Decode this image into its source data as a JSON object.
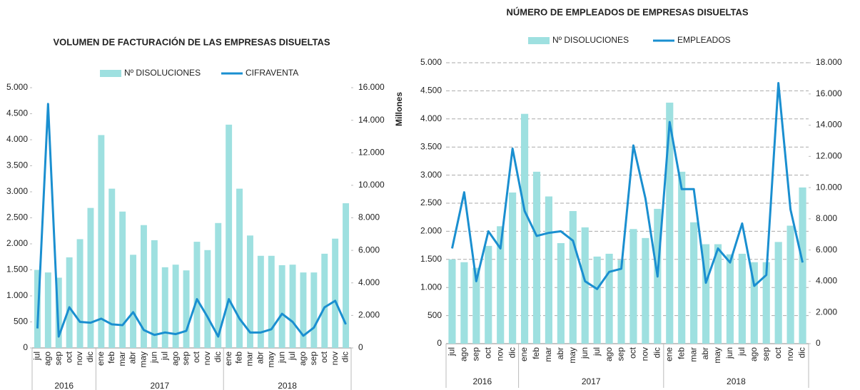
{
  "chart_data": [
    {
      "type": "bar_line",
      "title": "VOLUMEN DE FACTURACIÓN DE LAS EMPRESAS DISUELTAS",
      "categories": [
        "jul",
        "ago",
        "sep",
        "oct",
        "nov",
        "dic",
        "ene",
        "feb",
        "mar",
        "abr",
        "may",
        "jun",
        "jul",
        "ago",
        "sep",
        "oct",
        "nov",
        "dic",
        "ene",
        "feb",
        "mar",
        "abr",
        "may",
        "jun",
        "jul",
        "ago",
        "sep",
        "oct",
        "nov",
        "dic"
      ],
      "year_groups": [
        {
          "label": "2016",
          "count": 6
        },
        {
          "label": "2017",
          "count": 12
        },
        {
          "label": "2018",
          "count": 12
        }
      ],
      "series": [
        {
          "name": "Nº DISOLUCIONES",
          "color": "#9ee0e0",
          "values": [
            1500,
            1450,
            1350,
            1740,
            2090,
            2690,
            4090,
            3060,
            2620,
            1790,
            2360,
            2070,
            1550,
            1600,
            1490,
            2040,
            1880,
            2400,
            4290,
            3060,
            2160,
            1770,
            1770,
            1590,
            1600,
            1450,
            1450,
            1810,
            2100,
            2780
          ]
        },
        {
          "name": "CIFRAVENTA",
          "color": "#1a8fd0",
          "axis": "y2",
          "values": [
            1200,
            15000,
            700,
            2500,
            1600,
            1550,
            1800,
            1450,
            1400,
            2200,
            1100,
            800,
            950,
            850,
            1050,
            3000,
            1900,
            700,
            3000,
            1800,
            950,
            950,
            1150,
            2100,
            1600,
            750,
            1250,
            2500,
            2900,
            1450
          ]
        }
      ],
      "ylim": [
        0,
        5000
      ],
      "yticks": [
        0,
        500,
        {
          "value": 1000,
          "label": "1.000"
        },
        {
          "value": 1500,
          "label": "1.500"
        },
        {
          "value": 2000,
          "label": "2.000"
        },
        {
          "value": 2500,
          "label": "2.500"
        },
        {
          "value": 3000,
          "label": "3.000"
        },
        {
          "value": 3500,
          "label": "3.500"
        },
        {
          "value": 4000,
          "label": "4.000"
        },
        {
          "value": 4500,
          "label": "4.500"
        },
        {
          "value": 5000,
          "label": "5.000"
        }
      ],
      "y2lim": [
        0,
        16000
      ],
      "y2ticks": [
        0,
        {
          "value": 2000,
          "label": "2.000"
        },
        {
          "value": 4000,
          "label": "4.000"
        },
        {
          "value": 6000,
          "label": "6.000"
        },
        {
          "value": 8000,
          "label": "8.000"
        },
        {
          "value": 10000,
          "label": "10.000"
        },
        {
          "value": 12000,
          "label": "12.000"
        },
        {
          "value": 14000,
          "label": "14.000"
        },
        {
          "value": 16000,
          "label": "16.000"
        }
      ],
      "y2_label": "Millones",
      "grid": false
    },
    {
      "type": "bar_line",
      "title": "NÚMERO DE EMPLEADOS DE EMPRESAS DISUELTAS",
      "categories": [
        "jul",
        "ago",
        "sep",
        "oct",
        "nov",
        "dic",
        "ene",
        "feb",
        "mar",
        "abr",
        "may",
        "jun",
        "jul",
        "ago",
        "sep",
        "oct",
        "nov",
        "dic",
        "ene",
        "feb",
        "mar",
        "abr",
        "may",
        "jun",
        "jul",
        "ago",
        "sep",
        "oct",
        "nov",
        "dic"
      ],
      "year_groups": [
        {
          "label": "2016",
          "count": 6
        },
        {
          "label": "2017",
          "count": 12
        },
        {
          "label": "2018",
          "count": 12
        }
      ],
      "series": [
        {
          "name": "Nº DISOLUCIONES",
          "color": "#9ee0e0",
          "values": [
            1500,
            1450,
            1350,
            1740,
            2090,
            2690,
            4090,
            3060,
            2620,
            1790,
            2360,
            2070,
            1550,
            1600,
            1490,
            2040,
            1880,
            2400,
            4290,
            3060,
            2160,
            1770,
            1770,
            1590,
            1600,
            1450,
            1450,
            1810,
            2100,
            2780
          ]
        },
        {
          "name": "EMPLEADOS",
          "color": "#1a8fd0",
          "axis": "y2",
          "values": [
            6100,
            9700,
            4000,
            7200,
            6100,
            12500,
            8500,
            6900,
            7100,
            7200,
            6600,
            4000,
            3500,
            4600,
            4800,
            12700,
            9300,
            4300,
            14200,
            9900,
            9900,
            3900,
            6100,
            5200,
            7700,
            3700,
            4400,
            16700,
            8600,
            5200
          ]
        }
      ],
      "ylim": [
        0,
        5000
      ],
      "yticks": [
        0,
        500,
        {
          "value": 1000,
          "label": "1.000"
        },
        {
          "value": 1500,
          "label": "1.500"
        },
        {
          "value": 2000,
          "label": "2.000"
        },
        {
          "value": 2500,
          "label": "2.500"
        },
        {
          "value": 3000,
          "label": "3.000"
        },
        {
          "value": 3500,
          "label": "3.500"
        },
        {
          "value": 4000,
          "label": "4.000"
        },
        {
          "value": 4500,
          "label": "4.500"
        },
        {
          "value": 5000,
          "label": "5.000"
        }
      ],
      "y2lim": [
        0,
        18000
      ],
      "y2ticks": [
        0,
        {
          "value": 2000,
          "label": "2.000"
        },
        {
          "value": 4000,
          "label": "4.000"
        },
        {
          "value": 6000,
          "label": "6.000"
        },
        {
          "value": 8000,
          "label": "8.000"
        },
        {
          "value": 10000,
          "label": "10.000"
        },
        {
          "value": 12000,
          "label": "12.000"
        },
        {
          "value": 14000,
          "label": "14.000"
        },
        {
          "value": 16000,
          "label": "16.000"
        },
        {
          "value": 18000,
          "label": "18.000"
        }
      ],
      "grid": true
    }
  ]
}
